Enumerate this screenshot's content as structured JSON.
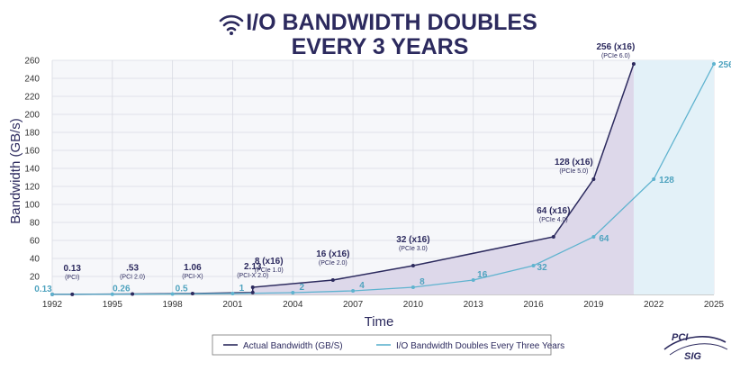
{
  "chart_data": {
    "type": "line",
    "title_lines": [
      "I/O BANDWIDTH DOUBLES",
      "EVERY 3 YEARS"
    ],
    "title_icon": "wifi-signal-icon",
    "xlabel": "Time",
    "ylabel": "Bandwidth (GB/s)",
    "x_ticks": [
      1992,
      1995,
      1998,
      2001,
      2004,
      2007,
      2010,
      2013,
      2016,
      2019,
      2022,
      2025
    ],
    "xlim": [
      1992,
      2025
    ],
    "ylim": [
      0,
      260
    ],
    "y_ticks": [
      20,
      40,
      60,
      80,
      100,
      120,
      140,
      160,
      180,
      200,
      220,
      240,
      260
    ],
    "grid": true,
    "legend_position": "bottom-center",
    "series": [
      {
        "name": "Actual Bandwidth (GB/S)",
        "color": "#2c2a5e",
        "fill": "#ddd8ea",
        "points": [
          {
            "x": 1992,
            "y": 0.13,
            "label": "",
            "sub": ""
          },
          {
            "x": 1993,
            "y": 0.13,
            "label": "0.13",
            "sub": "(PCI)"
          },
          {
            "x": 1996,
            "y": 0.53,
            "label": ".53",
            "sub": "(PCI 2.0)"
          },
          {
            "x": 1999,
            "y": 1.06,
            "label": "1.06",
            "sub": "(PCI-X)"
          },
          {
            "x": 2002,
            "y": 2.13,
            "label": "2.13",
            "sub": "(PCI-X 2.0)"
          },
          {
            "x": 2002,
            "y": 8,
            "label": "8 (x16)",
            "sub": "(PCIe 1.0)"
          },
          {
            "x": 2006,
            "y": 16,
            "label": "16 (x16)",
            "sub": "(PCIe 2.0)"
          },
          {
            "x": 2010,
            "y": 32,
            "label": "32 (x16)",
            "sub": "(PCIe 3.0)"
          },
          {
            "x": 2017,
            "y": 64,
            "label": "64 (x16)",
            "sub": "(PCIe 4.0)"
          },
          {
            "x": 2019,
            "y": 128,
            "label": "128 (x16)",
            "sub": "(PCIe 5.0)"
          },
          {
            "x": 2021,
            "y": 256,
            "label": "256 (x16)",
            "sub": "(PCIe 6.0)"
          }
        ]
      },
      {
        "name": "I/O Bandwidth Doubles Every Three Years",
        "color": "#5fb3cf",
        "fill": "#e3f1f8",
        "points": [
          {
            "x": 1992,
            "y": 0.13,
            "label": "0.13"
          },
          {
            "x": 1995,
            "y": 0.26,
            "label": "0.26"
          },
          {
            "x": 1998,
            "y": 0.5,
            "label": "0.5"
          },
          {
            "x": 2001,
            "y": 1,
            "label": "1"
          },
          {
            "x": 2004,
            "y": 2,
            "label": "2"
          },
          {
            "x": 2007,
            "y": 4,
            "label": "4"
          },
          {
            "x": 2010,
            "y": 8,
            "label": "8"
          },
          {
            "x": 2013,
            "y": 16,
            "label": "16"
          },
          {
            "x": 2016,
            "y": 32,
            "label": "32"
          },
          {
            "x": 2019,
            "y": 64,
            "label": "64"
          },
          {
            "x": 2022,
            "y": 128,
            "label": "128"
          },
          {
            "x": 2025,
            "y": 256,
            "label": "256"
          }
        ]
      }
    ]
  },
  "logo": {
    "line1": "PCI",
    "line2": "SIG",
    "name": "pci-sig-logo"
  }
}
